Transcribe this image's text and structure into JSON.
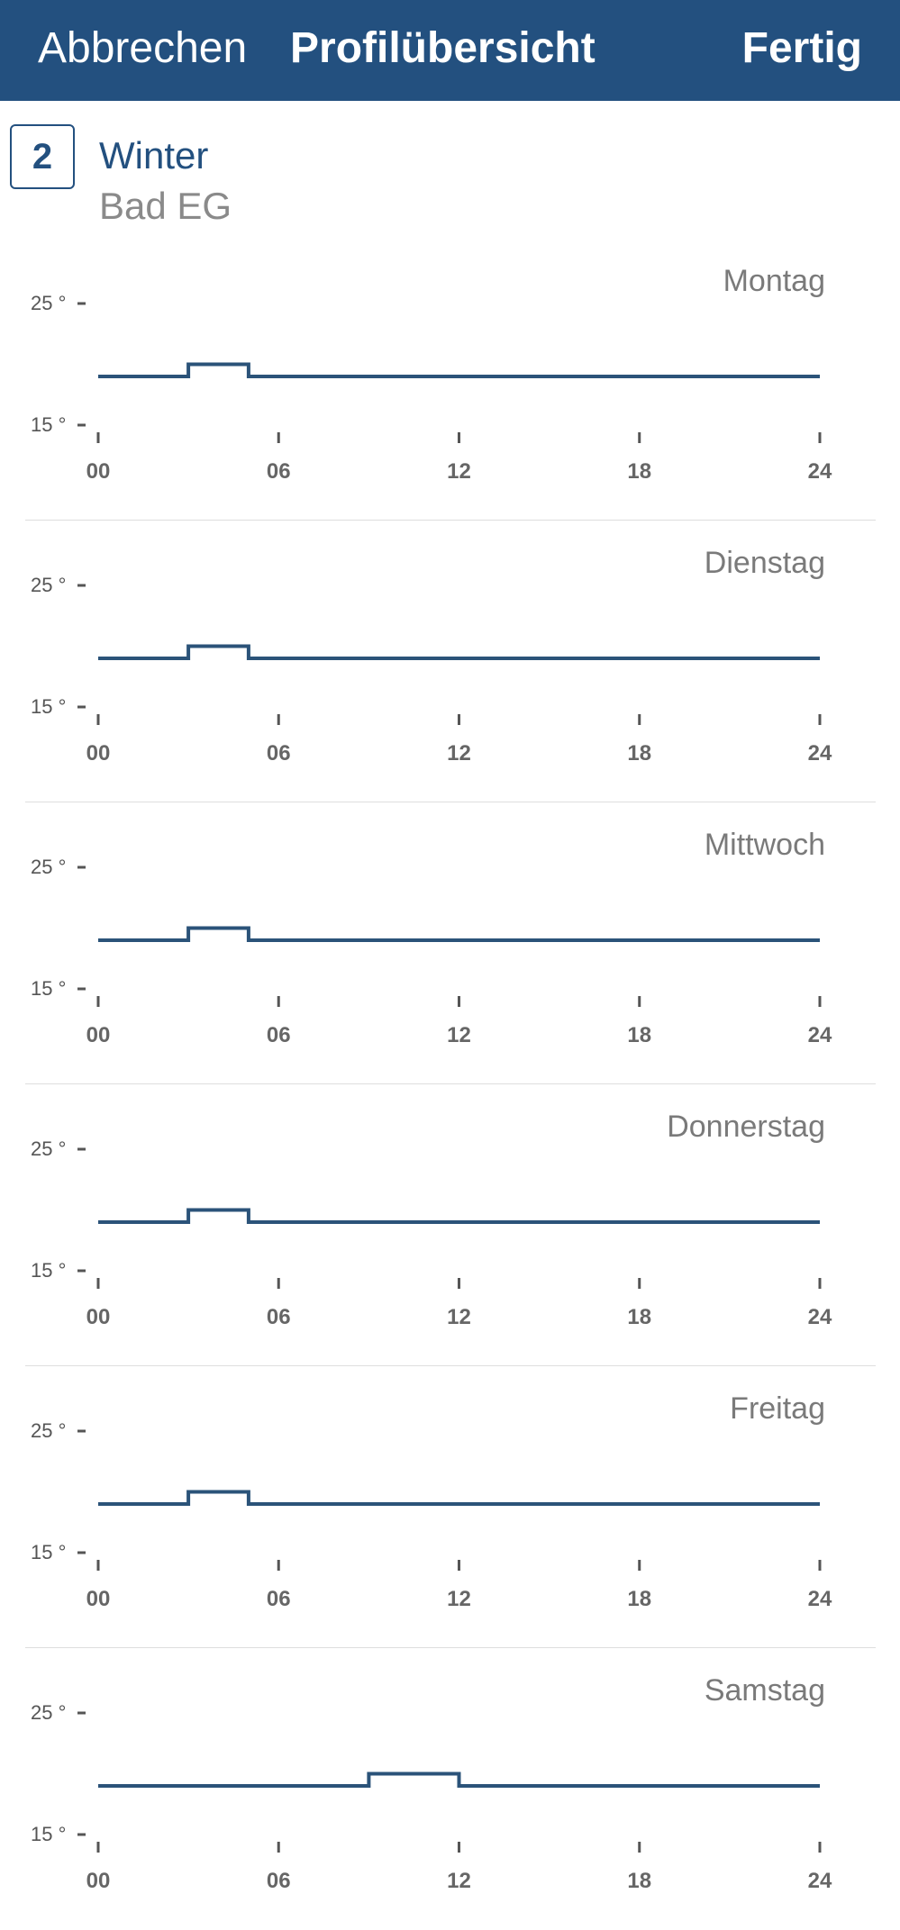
{
  "header": {
    "cancel_label": "Abbrechen",
    "title": "Profilübersicht",
    "done_label": "Fertig",
    "background_color": "#23507f"
  },
  "profile": {
    "number": "2",
    "name": "Winter",
    "room": "Bad EG"
  },
  "chart_data": [
    {
      "type": "line",
      "title": "Montag",
      "x_ticks": [
        "00",
        "06",
        "12",
        "18",
        "24"
      ],
      "y_ticks": [
        "25 °",
        "15 °"
      ],
      "xlim": [
        0,
        24
      ],
      "ylim": [
        15,
        25
      ],
      "series": [
        {
          "x": [
            0,
            3,
            3,
            5,
            5,
            24
          ],
          "y": [
            19,
            19,
            20,
            20,
            19,
            19
          ]
        }
      ],
      "line_color": "#2b5379"
    },
    {
      "type": "line",
      "title": "Dienstag",
      "x_ticks": [
        "00",
        "06",
        "12",
        "18",
        "24"
      ],
      "y_ticks": [
        "25 °",
        "15 °"
      ],
      "xlim": [
        0,
        24
      ],
      "ylim": [
        15,
        25
      ],
      "series": [
        {
          "x": [
            0,
            3,
            3,
            5,
            5,
            24
          ],
          "y": [
            19,
            19,
            20,
            20,
            19,
            19
          ]
        }
      ],
      "line_color": "#2b5379"
    },
    {
      "type": "line",
      "title": "Mittwoch",
      "x_ticks": [
        "00",
        "06",
        "12",
        "18",
        "24"
      ],
      "y_ticks": [
        "25 °",
        "15 °"
      ],
      "xlim": [
        0,
        24
      ],
      "ylim": [
        15,
        25
      ],
      "series": [
        {
          "x": [
            0,
            3,
            3,
            5,
            5,
            24
          ],
          "y": [
            19,
            19,
            20,
            20,
            19,
            19
          ]
        }
      ],
      "line_color": "#2b5379"
    },
    {
      "type": "line",
      "title": "Donnerstag",
      "x_ticks": [
        "00",
        "06",
        "12",
        "18",
        "24"
      ],
      "y_ticks": [
        "25 °",
        "15 °"
      ],
      "xlim": [
        0,
        24
      ],
      "ylim": [
        15,
        25
      ],
      "series": [
        {
          "x": [
            0,
            3,
            3,
            5,
            5,
            24
          ],
          "y": [
            19,
            19,
            20,
            20,
            19,
            19
          ]
        }
      ],
      "line_color": "#2b5379"
    },
    {
      "type": "line",
      "title": "Freitag",
      "x_ticks": [
        "00",
        "06",
        "12",
        "18",
        "24"
      ],
      "y_ticks": [
        "25 °",
        "15 °"
      ],
      "xlim": [
        0,
        24
      ],
      "ylim": [
        15,
        25
      ],
      "series": [
        {
          "x": [
            0,
            3,
            3,
            5,
            5,
            24
          ],
          "y": [
            19,
            19,
            20,
            20,
            19,
            19
          ]
        }
      ],
      "line_color": "#2b5379"
    },
    {
      "type": "line",
      "title": "Samstag",
      "x_ticks": [
        "00",
        "06",
        "12",
        "18",
        "24"
      ],
      "y_ticks": [
        "25 °",
        "15 °"
      ],
      "xlim": [
        0,
        24
      ],
      "ylim": [
        15,
        25
      ],
      "series": [
        {
          "x": [
            0,
            9,
            9,
            12,
            12,
            24
          ],
          "y": [
            19,
            19,
            20,
            20,
            19,
            19
          ]
        }
      ],
      "line_color": "#2b5379"
    }
  ]
}
